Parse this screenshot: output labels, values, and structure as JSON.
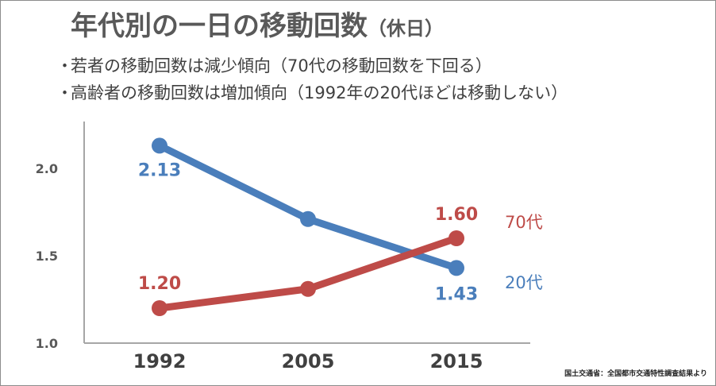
{
  "slide": {
    "title_main": "年代別の一日の移動回数",
    "title_paren": "（休日）",
    "bullets": [
      "若者の移動回数は減少傾向（70代の移動回数を下回る）",
      "高齢者の移動回数は増加傾向（1992年の20代ほどは移動しない）"
    ],
    "bullet_marker": "・",
    "source": "国土交通省：全国都市交通特性調査結果より"
  },
  "chart_data": {
    "type": "line",
    "title": "年代別の一日の移動回数（休日）",
    "categories": [
      "1992",
      "2005",
      "2015"
    ],
    "y_ticks": [
      "1.0",
      "1.5",
      "2.0"
    ],
    "ylim": [
      1.0,
      2.3
    ],
    "grid": false,
    "series": [
      {
        "name": "20代",
        "color": "#4a7ebb",
        "values": [
          2.13,
          1.71,
          1.43
        ],
        "labels": [
          "2.13",
          "",
          "1.43"
        ]
      },
      {
        "name": "70代",
        "color": "#be4b48",
        "values": [
          1.2,
          1.31,
          1.6
        ],
        "labels": [
          "1.20",
          "",
          "1.60"
        ]
      }
    ]
  }
}
